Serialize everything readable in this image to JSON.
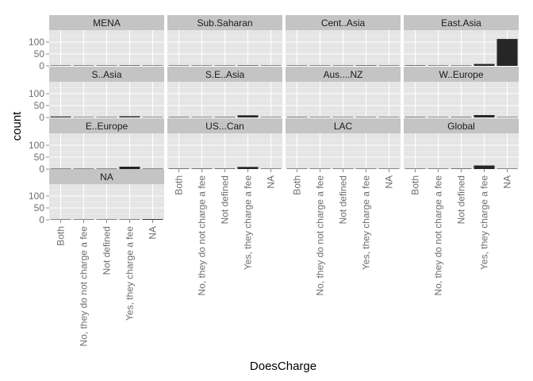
{
  "chart_data": {
    "type": "bar",
    "facet_layout": "wrap, 4 columns",
    "xlabel": "DoesCharge",
    "ylabel": "count",
    "categories": [
      "Both",
      "No, they do not charge a fee",
      "Not defined",
      "Yes, they charge a fee",
      "NA"
    ],
    "ylim": [
      0,
      150
    ],
    "yticks": [
      0,
      50,
      100
    ],
    "grid": true,
    "bar_color": "#262626",
    "panel_color": "#e5e5e5",
    "strip_color": "#c4c4c4",
    "facets": [
      {
        "name": "MENA",
        "values": [
          1,
          0,
          1,
          2,
          0
        ]
      },
      {
        "name": "Sub.Saharan",
        "values": [
          1,
          0,
          0,
          2,
          0
        ]
      },
      {
        "name": "Cent..Asia",
        "values": [
          1,
          0,
          0,
          2,
          0
        ]
      },
      {
        "name": "East.Asia",
        "values": [
          2,
          0,
          0,
          8,
          113
        ]
      },
      {
        "name": "S..Asia",
        "values": [
          4,
          0,
          1,
          5,
          0
        ]
      },
      {
        "name": "S.E..Asia",
        "values": [
          2,
          0,
          2,
          9,
          0
        ]
      },
      {
        "name": "Aus....NZ",
        "values": [
          2,
          0,
          0,
          0,
          0
        ]
      },
      {
        "name": "W..Europe",
        "values": [
          2,
          0,
          2,
          10,
          0
        ]
      },
      {
        "name": "E..Europe",
        "values": [
          1,
          0,
          0,
          10,
          0
        ]
      },
      {
        "name": "US...Can",
        "values": [
          2,
          2,
          2,
          9,
          0
        ]
      },
      {
        "name": "LAC",
        "values": [
          0,
          0,
          0,
          1,
          0
        ]
      },
      {
        "name": "Global",
        "values": [
          1,
          0,
          2,
          15,
          0
        ]
      },
      {
        "name": "NA",
        "values": [
          0,
          0,
          0,
          0,
          3
        ]
      }
    ]
  }
}
